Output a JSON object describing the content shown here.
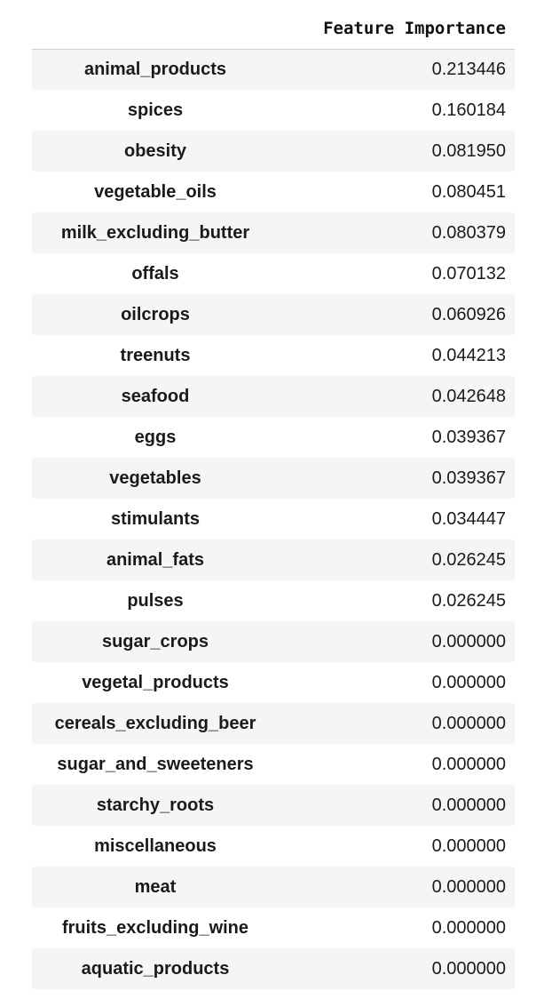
{
  "table": {
    "index_header": "",
    "value_header": "Feature Importance",
    "rows": [
      {
        "feature": "animal_products",
        "importance": "0.213446"
      },
      {
        "feature": "spices",
        "importance": "0.160184"
      },
      {
        "feature": "obesity",
        "importance": "0.081950"
      },
      {
        "feature": "vegetable_oils",
        "importance": "0.080451"
      },
      {
        "feature": "milk_excluding_butter",
        "importance": "0.080379"
      },
      {
        "feature": "offals",
        "importance": "0.070132"
      },
      {
        "feature": "oilcrops",
        "importance": "0.060926"
      },
      {
        "feature": "treenuts",
        "importance": "0.044213"
      },
      {
        "feature": "seafood",
        "importance": "0.042648"
      },
      {
        "feature": "eggs",
        "importance": "0.039367"
      },
      {
        "feature": "vegetables",
        "importance": "0.039367"
      },
      {
        "feature": "stimulants",
        "importance": "0.034447"
      },
      {
        "feature": "animal_fats",
        "importance": "0.026245"
      },
      {
        "feature": "pulses",
        "importance": "0.026245"
      },
      {
        "feature": "sugar_crops",
        "importance": "0.000000"
      },
      {
        "feature": "vegetal_products",
        "importance": "0.000000"
      },
      {
        "feature": "cereals_excluding_beer",
        "importance": "0.000000"
      },
      {
        "feature": "sugar_and_sweeteners",
        "importance": "0.000000"
      },
      {
        "feature": "starchy_roots",
        "importance": "0.000000"
      },
      {
        "feature": "miscellaneous",
        "importance": "0.000000"
      },
      {
        "feature": "meat",
        "importance": "0.000000"
      },
      {
        "feature": "fruits_excluding_wine",
        "importance": "0.000000"
      },
      {
        "feature": "aquatic_products",
        "importance": "0.000000"
      }
    ]
  }
}
